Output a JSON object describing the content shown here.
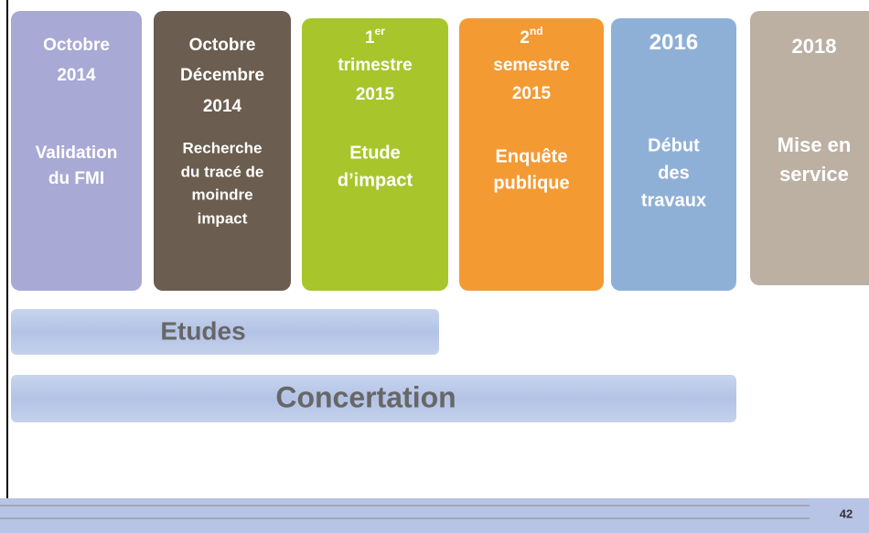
{
  "cards": [
    {
      "date": [
        "Octobre",
        "2014"
      ],
      "label": [
        "Validation",
        "du FMI"
      ]
    },
    {
      "date": [
        "Octobre",
        "Décembre",
        "2014"
      ],
      "label": [
        "Recherche",
        "du tracé de",
        "moindre",
        "impact"
      ]
    },
    {
      "date": [
        "1",
        "trimestre",
        "2015"
      ],
      "date_sup": "er",
      "label": [
        "Etude",
        "d’impact"
      ]
    },
    {
      "date": [
        "2",
        "semestre",
        "2015"
      ],
      "date_sup": "nd",
      "label": [
        "Enquête",
        "publique"
      ]
    },
    {
      "date": [
        "2016"
      ],
      "label": [
        "Début",
        "des",
        "travaux"
      ]
    },
    {
      "date": [
        "2018"
      ],
      "label": [
        "Mise en",
        "service"
      ]
    }
  ],
  "bars": [
    "Etudes",
    "Concertation"
  ],
  "page_number": "42"
}
